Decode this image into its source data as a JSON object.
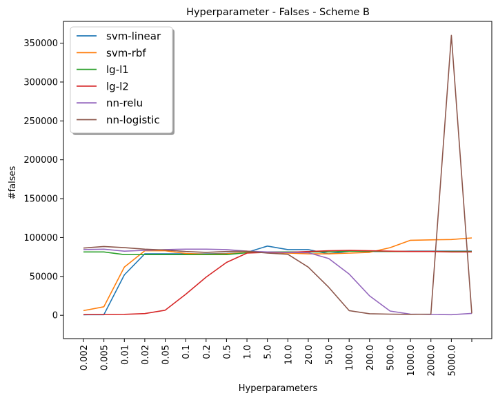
{
  "chart_data": {
    "type": "line",
    "title": "Hyperparameter - Falses - Scheme B",
    "xlabel": "Hyperparameters",
    "ylabel": "#falses",
    "categories": [
      "0.002",
      "0.005",
      "0.01",
      "0.02",
      "0.05",
      "0.1",
      "0.2",
      "0.5",
      "1.0",
      "5.0",
      "10.0",
      "20.0",
      "50.0",
      "100.0",
      "200.0",
      "500.0",
      "1000.0",
      "2000.0",
      "5000.0",
      ""
    ],
    "ylim": [
      -30000,
      378000
    ],
    "yticks": [
      0,
      50000,
      100000,
      150000,
      200000,
      250000,
      300000,
      350000
    ],
    "ytick_labels": [
      "0",
      "50000",
      "100000",
      "150000",
      "200000",
      "250000",
      "300000",
      "350000"
    ],
    "grid": false,
    "legend_position": "top-left",
    "series": [
      {
        "name": "svm-linear",
        "color": "#1f77b4",
        "values": [
          700,
          800,
          52000,
          79000,
          79000,
          79000,
          79000,
          79500,
          81000,
          89000,
          84500,
          84500,
          79000,
          82500,
          82000,
          82000,
          82500,
          82500,
          82500,
          82500
        ]
      },
      {
        "name": "svm-rbf",
        "color": "#ff7f0e",
        "values": [
          6000,
          11000,
          62000,
          83000,
          83000,
          79500,
          78500,
          79000,
          81000,
          81000,
          80000,
          79000,
          79000,
          80000,
          81000,
          87000,
          96500,
          97000,
          97500,
          99500
        ]
      },
      {
        "name": "lg-l1",
        "color": "#2ca02c",
        "values": [
          81500,
          81500,
          78000,
          78000,
          78000,
          78000,
          78000,
          78000,
          80500,
          81500,
          81500,
          81500,
          81500,
          82500,
          82500,
          82000,
          82000,
          82000,
          82000,
          82000
        ]
      },
      {
        "name": "lg-l2",
        "color": "#d62728",
        "values": [
          1000,
          1000,
          1200,
          2200,
          6500,
          27000,
          49000,
          68000,
          80000,
          81000,
          81000,
          82000,
          83000,
          83500,
          83000,
          82500,
          82000,
          82000,
          81500,
          81500
        ]
      },
      {
        "name": "nn-relu",
        "color": "#9467bd",
        "values": [
          84500,
          85000,
          82500,
          83500,
          84500,
          85000,
          85000,
          84500,
          82500,
          81500,
          81000,
          80500,
          73000,
          53000,
          25000,
          5500,
          1500,
          1000,
          800,
          2500
        ]
      },
      {
        "name": "nn-logistic",
        "color": "#8c564b",
        "values": [
          86500,
          88500,
          87000,
          85000,
          84000,
          82000,
          81000,
          82000,
          82500,
          80000,
          78500,
          62000,
          36000,
          6000,
          2000,
          1500,
          1200,
          1500,
          360000,
          2500
        ]
      }
    ]
  }
}
